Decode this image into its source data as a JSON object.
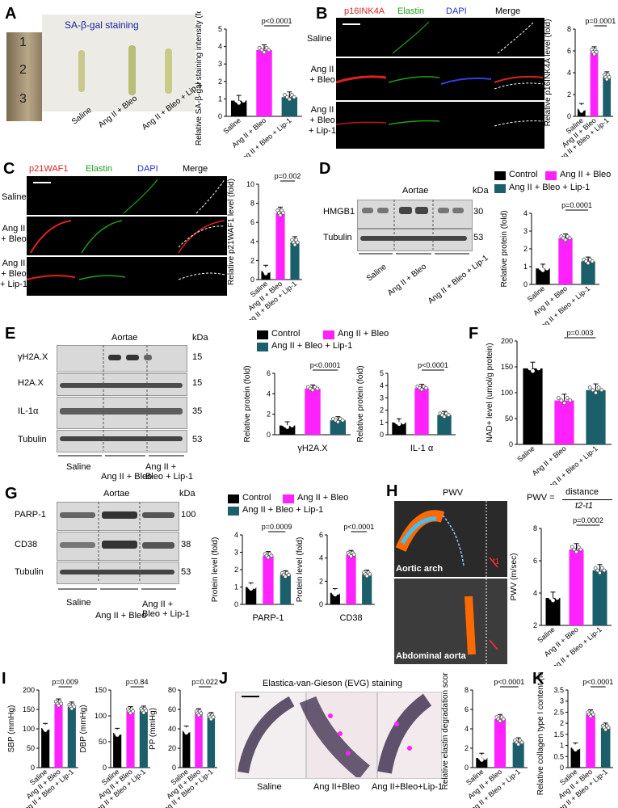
{
  "panels": {
    "A": {
      "letter": "A",
      "title": "SA-β-gal staining",
      "ruler_marks": [
        "1",
        "2",
        "3"
      ],
      "groups": [
        "Saline",
        "Ang II + Bleo",
        "Ang II + Bleo + Lip-1"
      ]
    },
    "B": {
      "letter": "B",
      "channels": [
        "p16INK4A",
        "Elastin",
        "DAPI",
        "Merge"
      ],
      "rows": [
        "Saline",
        "Ang II + Bleo",
        "Ang II + Bleo + Lip-1"
      ]
    },
    "C": {
      "letter": "C",
      "channels": [
        "p21WAF1",
        "Elastin",
        "DAPI",
        "Merge"
      ],
      "rows": [
        "Saline",
        "Ang II + Bleo",
        "Ang II + Bleo + Lip-1"
      ]
    },
    "D": {
      "letter": "D",
      "header": "Aortae",
      "kda": "kDa",
      "bands": [
        {
          "name": "HMGB1",
          "kda": "30"
        },
        {
          "name": "Tubulin",
          "kda": "53"
        }
      ],
      "groups": [
        "Saline",
        "Ang II + Bleo",
        "Ang II + Bleo + Lip-1"
      ]
    },
    "E": {
      "letter": "E",
      "header": "Aortae",
      "kda": "kDa",
      "bands": [
        {
          "name": "γH2A.X",
          "kda": "15"
        },
        {
          "name": "H2A.X",
          "kda": "15"
        },
        {
          "name": "IL-1α",
          "kda": "35"
        },
        {
          "name": "Tubulin",
          "kda": "53"
        }
      ],
      "groups": [
        "Saline",
        "Ang II + Bleo",
        "Ang II + Bleo + Lip-1"
      ]
    },
    "F": {
      "letter": "F"
    },
    "G": {
      "letter": "G",
      "header": "Aortae",
      "kda": "kDa",
      "bands": [
        {
          "name": "PARP-1",
          "kda": "100"
        },
        {
          "name": "CD38",
          "kda": "38"
        },
        {
          "name": "Tubulin",
          "kda": "53"
        }
      ],
      "groups": [
        "Saline",
        "Ang II + Bleo",
        "Ang II + Bleo + Lip-1"
      ]
    },
    "H": {
      "letter": "H",
      "title": "PWV",
      "formula_left": "PWV =",
      "formula_num": "distance",
      "formula_den": "t2-t1",
      "image_labels": [
        "Aortic arch",
        "Abdominal aorta"
      ],
      "marker": "t1"
    },
    "I": {
      "letter": "I"
    },
    "J": {
      "letter": "J",
      "title": "Elastica-van-Gieson (EVG) staining",
      "groups": [
        "Saline",
        "Ang II+Bleo",
        "Ang II+Bleo+Lip-1"
      ]
    },
    "K": {
      "letter": "K"
    }
  },
  "legend": {
    "items": [
      "Control",
      "Ang II + Bleo",
      "Ang II + Bleo + Lip-1"
    ],
    "colors": [
      "#000000",
      "#ff22ff",
      "#1b5f6b"
    ]
  },
  "chart_data": [
    {
      "id": "A",
      "type": "bar",
      "categories": [
        "Saline",
        "Ang II + Bleo",
        "Ang II + Bleo + Lip-1"
      ],
      "values": [
        0.9,
        3.8,
        1.1
      ],
      "ylabel": "Relative SA-β-gal staining intensity (fold)",
      "ylim": [
        0,
        5
      ],
      "yticks": [
        0,
        1,
        2,
        3,
        4,
        5
      ],
      "pvalue": "p<0.0001",
      "bracket": [
        1,
        2
      ],
      "colors": [
        "#000000",
        "#ff22ff",
        "#1b5f6b"
      ]
    },
    {
      "id": "B",
      "type": "bar",
      "categories": [
        "Saline",
        "Ang II + Bleo",
        "Ang II + Bleo + Lip-1"
      ],
      "values": [
        0.7,
        5.9,
        3.6
      ],
      "ylabel": "Relative p16INK4A level (fold)",
      "ylim": [
        0,
        8
      ],
      "yticks": [
        0,
        2,
        4,
        6,
        8
      ],
      "pvalue": "p=0.0001",
      "bracket": [
        1,
        2
      ],
      "colors": [
        "#000000",
        "#ff22ff",
        "#1b5f6b"
      ]
    },
    {
      "id": "C",
      "type": "bar",
      "categories": [
        "Saline",
        "Ang II + Bleo",
        "Ang II + Bleo + Lip-1"
      ],
      "values": [
        0.9,
        7.0,
        3.9
      ],
      "ylabel": "Relative p21WAF1 level (fold)",
      "ylim": [
        0,
        10
      ],
      "yticks": [
        0,
        2,
        4,
        6,
        8,
        10
      ],
      "pvalue": "p=0.002",
      "bracket": [
        1,
        2
      ],
      "colors": [
        "#000000",
        "#ff22ff",
        "#1b5f6b"
      ]
    },
    {
      "id": "D",
      "type": "bar",
      "categories": [
        "Saline",
        "Ang II + Bleo",
        "Ang II + Bleo + Lip-1"
      ],
      "values": [
        0.9,
        2.6,
        1.3
      ],
      "ylabel": "Relative protein (fold)",
      "ylim": [
        0,
        4
      ],
      "yticks": [
        0,
        1,
        2,
        3,
        4
      ],
      "pvalue": "p=0.0001",
      "bracket": [
        1,
        2
      ],
      "colors": [
        "#000000",
        "#ff22ff",
        "#1b5f6b"
      ]
    },
    {
      "id": "E1",
      "type": "bar",
      "categories": [
        "Control",
        "Ang II + Bleo",
        "Ang II + Bleo + Lip-1"
      ],
      "values": [
        0.9,
        4.5,
        1.4
      ],
      "xlabel": "γH2A.X",
      "ylabel": "Relative protein (fold)",
      "ylim": [
        0,
        6
      ],
      "yticks": [
        0,
        2,
        4,
        6
      ],
      "pvalue": "p<0.0001",
      "bracket": [
        1,
        2
      ],
      "colors": [
        "#000000",
        "#ff22ff",
        "#1b5f6b"
      ]
    },
    {
      "id": "E2",
      "type": "bar",
      "categories": [
        "Control",
        "Ang II + Bleo",
        "Ang II + Bleo + Lip-1"
      ],
      "values": [
        1.0,
        3.8,
        1.6
      ],
      "xlabel": "IL-1 α",
      "ylabel": "Relative protein (fold)",
      "ylim": [
        0,
        5
      ],
      "yticks": [
        0,
        1,
        2,
        3,
        4,
        5
      ],
      "pvalue": "p<0.0001",
      "bracket": [
        1,
        2
      ],
      "colors": [
        "#000000",
        "#ff22ff",
        "#1b5f6b"
      ]
    },
    {
      "id": "F",
      "type": "bar",
      "categories": [
        "Saline",
        "Ang II + Bleo",
        "Ang II + Bleo + Lip-1"
      ],
      "values": [
        147,
        85,
        105
      ],
      "ylabel": "NAD+ level (umol/g protein)",
      "ylim": [
        0,
        200
      ],
      "yticks": [
        0,
        50,
        100,
        150,
        200
      ],
      "pvalue": "p=0.003",
      "bracket": [
        1,
        2
      ],
      "colors": [
        "#000000",
        "#ff22ff",
        "#1b5f6b"
      ]
    },
    {
      "id": "G1",
      "type": "bar",
      "categories": [
        "Control",
        "Ang II + Bleo",
        "Ang II + Bleo + Lip-1"
      ],
      "values": [
        1.0,
        2.8,
        1.7
      ],
      "xlabel": "PARP-1",
      "ylabel": "Protein level (fold)",
      "ylim": [
        0,
        4
      ],
      "yticks": [
        0,
        1,
        2,
        3,
        4
      ],
      "pvalue": "p=0.0009",
      "bracket": [
        1,
        2
      ],
      "colors": [
        "#000000",
        "#ff22ff",
        "#1b5f6b"
      ]
    },
    {
      "id": "G2",
      "type": "bar",
      "categories": [
        "Control",
        "Ang II + Bleo",
        "Ang II + Bleo + Lip-1"
      ],
      "values": [
        1.0,
        4.3,
        2.6
      ],
      "xlabel": "CD38",
      "ylabel": "Protein level (fold)",
      "ylim": [
        0,
        6
      ],
      "yticks": [
        0,
        2,
        4,
        6
      ],
      "pvalue": "p<0.0001",
      "bracket": [
        1,
        2
      ],
      "colors": [
        "#000000",
        "#ff22ff",
        "#1b5f6b"
      ]
    },
    {
      "id": "H",
      "type": "bar",
      "categories": [
        "Saline",
        "Ang II + Bleo",
        "Ang II + Bleo + Lip-1"
      ],
      "values": [
        3.7,
        6.7,
        5.4
      ],
      "ylabel": "PWV (m/sec)",
      "ylim": [
        2,
        8
      ],
      "yticks": [
        2,
        4,
        6,
        8
      ],
      "pvalue": "p=0.0002",
      "bracket": [
        1,
        2
      ],
      "colors": [
        "#000000",
        "#ff22ff",
        "#1b5f6b"
      ]
    },
    {
      "id": "I1",
      "type": "bar",
      "categories": [
        "Saline",
        "Ang II + Bleo",
        "Ang II + Bleo + Lip-1"
      ],
      "values": [
        102,
        165,
        157
      ],
      "ylabel": "SBP (mmHg)",
      "ylim": [
        0,
        200
      ],
      "yticks": [
        0,
        50,
        100,
        150,
        200
      ],
      "pvalue": "p=0.009",
      "bracket": [
        1,
        2
      ],
      "colors": [
        "#000000",
        "#ff22ff",
        "#1b5f6b"
      ]
    },
    {
      "id": "I2",
      "type": "bar",
      "categories": [
        "Saline",
        "Ang II + Bleo",
        "Ang II + Bleo + Lip-1"
      ],
      "values": [
        67,
        109,
        110
      ],
      "ylabel": "DBP (mmHg)",
      "ylim": [
        0,
        150
      ],
      "yticks": [
        0,
        50,
        100,
        150
      ],
      "pvalue": "p=0.84",
      "bracket": [
        1,
        2
      ],
      "colors": [
        "#000000",
        "#ff22ff",
        "#1b5f6b"
      ]
    },
    {
      "id": "I3",
      "type": "bar",
      "categories": [
        "Saline",
        "Ang II + Bleo",
        "Ang II + Bleo + Lip-1"
      ],
      "values": [
        38,
        56,
        52
      ],
      "ylabel": "PP (mmHg)",
      "ylim": [
        0,
        80
      ],
      "yticks": [
        0,
        20,
        40,
        60,
        80
      ],
      "pvalue": "p=0.022",
      "bracket": [
        1,
        2
      ],
      "colors": [
        "#000000",
        "#ff22ff",
        "#1b5f6b"
      ]
    },
    {
      "id": "J",
      "type": "bar",
      "categories": [
        "Saline",
        "Ang II + Bleo",
        "Ang II + Bleo + Lip-1"
      ],
      "values": [
        1.0,
        5.0,
        2.6
      ],
      "ylabel": "Relative elastin degradation score",
      "ylim": [
        0,
        8
      ],
      "yticks": [
        0,
        2,
        4,
        6,
        8
      ],
      "pvalue": "p<0.0001",
      "bracket": [
        1,
        2
      ],
      "colors": [
        "#000000",
        "#ff22ff",
        "#1b5f6b"
      ]
    },
    {
      "id": "K",
      "type": "bar",
      "categories": [
        "Saline",
        "Ang II + Bleo",
        "Ang II + Bleo + Lip-1"
      ],
      "values": [
        0.9,
        2.4,
        1.8
      ],
      "ylabel": "Relative collagen type I content (fold)",
      "ylim": [
        0,
        3.5
      ],
      "yticks": [
        0,
        0.5,
        1,
        1.5,
        2,
        2.5,
        3,
        3.5
      ],
      "pvalue": "p<0.0001",
      "bracket": [
        1,
        2
      ],
      "colors": [
        "#000000",
        "#ff22ff",
        "#1b5f6b"
      ]
    }
  ]
}
